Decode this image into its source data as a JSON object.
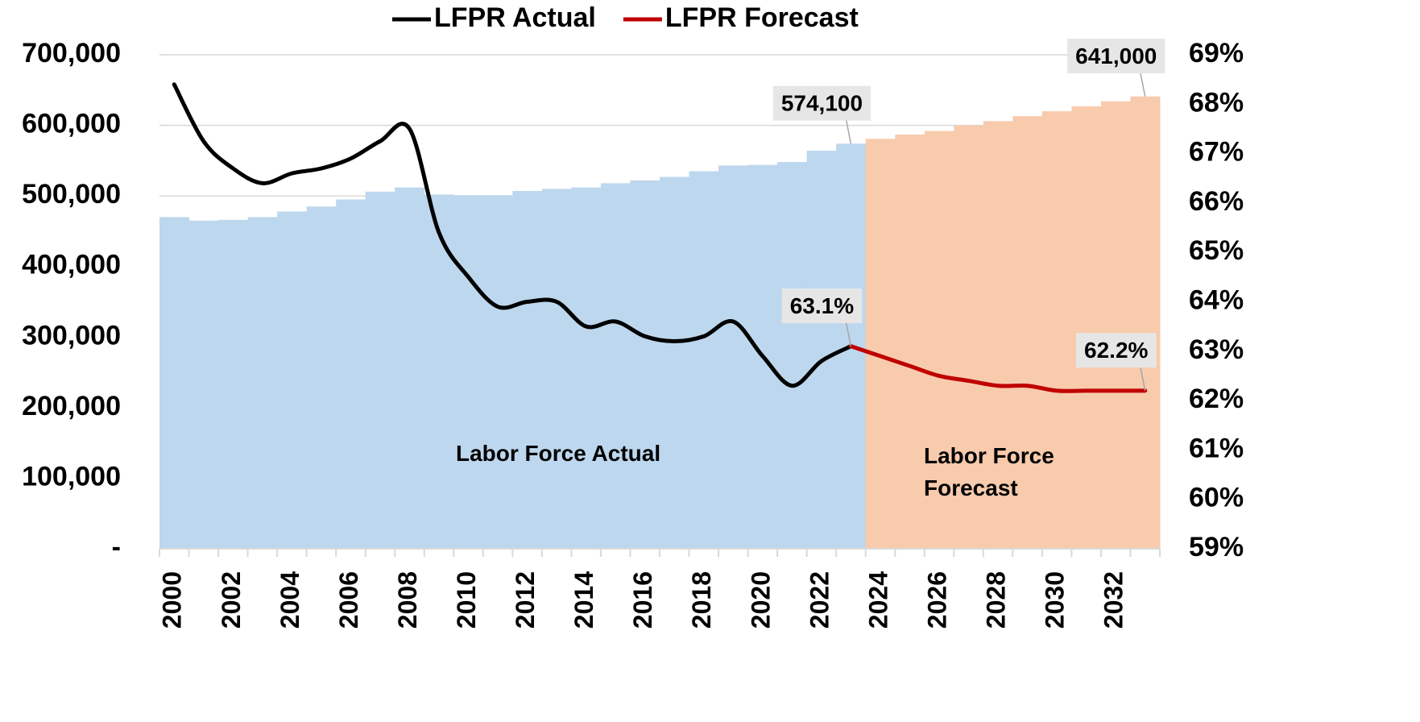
{
  "chart_data": {
    "type": "bar-line",
    "categories": [
      "2000",
      null,
      "2002",
      null,
      "2004",
      null,
      "2006",
      null,
      "2008",
      null,
      "2010",
      null,
      "2012",
      null,
      "2014",
      null,
      "2016",
      null,
      "2018",
      null,
      "2020",
      null,
      "2022",
      null,
      "2024",
      null,
      "2026",
      null,
      "2028",
      null,
      "2030",
      null,
      "2032",
      null
    ],
    "series": [
      {
        "name": "Labor Force Actual",
        "type": "bar",
        "color": "#bdd7ee",
        "values": [
          470000,
          465000,
          466000,
          470000,
          478000,
          485000,
          495000,
          506000,
          512000,
          502000,
          501000,
          501000,
          507000,
          510000,
          512000,
          518000,
          522000,
          527000,
          535000,
          543000,
          544000,
          548000,
          564000,
          574100,
          null,
          null,
          null,
          null,
          null,
          null,
          null,
          null,
          null,
          null
        ],
        "value_labels": [
          null,
          null,
          null,
          null,
          null,
          null,
          null,
          null,
          null,
          null,
          null,
          null,
          null,
          null,
          null,
          null,
          null,
          null,
          null,
          null,
          null,
          null,
          null,
          "574,100",
          null,
          null,
          null,
          null,
          null,
          null,
          null,
          null,
          null,
          null
        ]
      },
      {
        "name": "Labor Force Forecast",
        "type": "bar",
        "color": "#f8cbad",
        "values": [
          null,
          null,
          null,
          null,
          null,
          null,
          null,
          null,
          null,
          null,
          null,
          null,
          null,
          null,
          null,
          null,
          null,
          null,
          null,
          null,
          null,
          null,
          null,
          null,
          581000,
          587000,
          592000,
          600000,
          606000,
          613000,
          620000,
          627000,
          634000,
          641000
        ],
        "value_labels": [
          null,
          null,
          null,
          null,
          null,
          null,
          null,
          null,
          null,
          null,
          null,
          null,
          null,
          null,
          null,
          null,
          null,
          null,
          null,
          null,
          null,
          null,
          null,
          null,
          null,
          null,
          null,
          null,
          null,
          null,
          null,
          null,
          null,
          "641,000"
        ]
      },
      {
        "name": "LFPR Actual",
        "type": "line",
        "axis": "y2",
        "color": "#000000",
        "values": [
          68.4,
          67.25,
          66.7,
          66.4,
          66.6,
          66.7,
          66.9,
          67.25,
          67.5,
          65.4,
          64.5,
          63.9,
          64.0,
          64.0,
          63.5,
          63.6,
          63.3,
          63.2,
          63.3,
          63.6,
          62.9,
          62.3,
          62.8,
          63.1,
          null,
          null,
          null,
          null,
          null,
          null,
          null,
          null,
          null,
          null
        ],
        "value_labels": [
          null,
          null,
          null,
          null,
          null,
          null,
          null,
          null,
          null,
          null,
          null,
          null,
          null,
          null,
          null,
          null,
          null,
          null,
          null,
          null,
          null,
          null,
          null,
          "63.1%",
          null,
          null,
          null,
          null,
          null,
          null,
          null,
          null,
          null,
          null
        ]
      },
      {
        "name": "LFPR Forecast",
        "type": "line",
        "axis": "y2",
        "color": "#c00000",
        "values": [
          null,
          null,
          null,
          null,
          null,
          null,
          null,
          null,
          null,
          null,
          null,
          null,
          null,
          null,
          null,
          null,
          null,
          null,
          null,
          null,
          null,
          null,
          null,
          63.1,
          62.9,
          62.7,
          62.5,
          62.4,
          62.3,
          62.3,
          62.2,
          62.2,
          62.2,
          62.2
        ],
        "value_labels": [
          null,
          null,
          null,
          null,
          null,
          null,
          null,
          null,
          null,
          null,
          null,
          null,
          null,
          null,
          null,
          null,
          null,
          null,
          null,
          null,
          null,
          null,
          null,
          null,
          null,
          null,
          null,
          null,
          null,
          null,
          null,
          null,
          null,
          "62.2%"
        ]
      }
    ],
    "ylim": [
      0,
      700000
    ],
    "yticks": [
      {
        "value": 0,
        "label": "-"
      },
      {
        "value": 100000,
        "label": "100,000"
      },
      {
        "value": 200000,
        "label": "200,000"
      },
      {
        "value": 300000,
        "label": "300,000"
      },
      {
        "value": 400000,
        "label": "400,000"
      },
      {
        "value": 500000,
        "label": "500,000"
      },
      {
        "value": 600000,
        "label": "600,000"
      },
      {
        "value": 700000,
        "label": "700,000"
      }
    ],
    "y2lim": [
      59,
      69
    ],
    "y2ticks": [
      {
        "value": 59,
        "label": "59%"
      },
      {
        "value": 60,
        "label": "60%"
      },
      {
        "value": 61,
        "label": "61%"
      },
      {
        "value": 62,
        "label": "62%"
      },
      {
        "value": 63,
        "label": "63%"
      },
      {
        "value": 64,
        "label": "64%"
      },
      {
        "value": 65,
        "label": "65%"
      },
      {
        "value": 66,
        "label": "66%"
      },
      {
        "value": 67,
        "label": "67%"
      },
      {
        "value": 68,
        "label": "68%"
      },
      {
        "value": 69,
        "label": "69%"
      }
    ],
    "grid": true,
    "legend": "top"
  }
}
